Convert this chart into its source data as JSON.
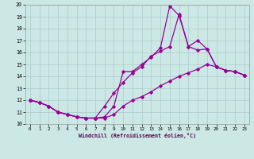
{
  "xlabel": "Windchill (Refroidissement éolien,°C)",
  "bg_color": "#cce8e4",
  "grid_color": "#aacccc",
  "line_color": "#990099",
  "xlim": [
    -0.5,
    23.5
  ],
  "ylim": [
    10,
    20
  ],
  "xticks": [
    0,
    1,
    2,
    3,
    4,
    5,
    6,
    7,
    8,
    9,
    10,
    11,
    12,
    13,
    14,
    15,
    16,
    17,
    18,
    19,
    20,
    21,
    22,
    23
  ],
  "yticks": [
    10,
    11,
    12,
    13,
    14,
    15,
    16,
    17,
    18,
    19,
    20
  ],
  "curve_upper_x": [
    0,
    1,
    2,
    3,
    4,
    5,
    6,
    7,
    8,
    9,
    10,
    11,
    12,
    13,
    14,
    15,
    16,
    17,
    18,
    19,
    20,
    21,
    22,
    23
  ],
  "curve_upper_y": [
    12.0,
    11.8,
    11.5,
    11.0,
    10.8,
    10.6,
    10.5,
    10.5,
    10.6,
    11.5,
    14.4,
    14.4,
    15.0,
    15.6,
    16.4,
    19.9,
    19.1,
    16.5,
    17.0,
    16.3,
    14.8,
    14.5,
    14.4,
    14.1
  ],
  "curve_mid_x": [
    0,
    1,
    2,
    3,
    4,
    5,
    6,
    7,
    8,
    9,
    10,
    11,
    12,
    13,
    14,
    15,
    16,
    17,
    18,
    19,
    20,
    21,
    22,
    23
  ],
  "curve_mid_y": [
    12.0,
    11.8,
    11.5,
    11.0,
    10.8,
    10.6,
    10.5,
    10.5,
    11.5,
    12.6,
    13.5,
    14.3,
    14.8,
    15.7,
    16.1,
    16.5,
    19.2,
    16.5,
    16.2,
    16.3,
    14.8,
    14.5,
    14.4,
    14.1
  ],
  "curve_lower_x": [
    0,
    1,
    2,
    3,
    4,
    5,
    6,
    7,
    8,
    9,
    10,
    11,
    12,
    13,
    14,
    15,
    16,
    17,
    18,
    19,
    20,
    21,
    22,
    23
  ],
  "curve_lower_y": [
    12.0,
    11.8,
    11.5,
    11.0,
    10.8,
    10.6,
    10.5,
    10.5,
    10.5,
    10.8,
    11.5,
    12.0,
    12.3,
    12.7,
    13.2,
    13.6,
    14.0,
    14.3,
    14.6,
    15.0,
    14.8,
    14.5,
    14.4,
    14.1
  ]
}
